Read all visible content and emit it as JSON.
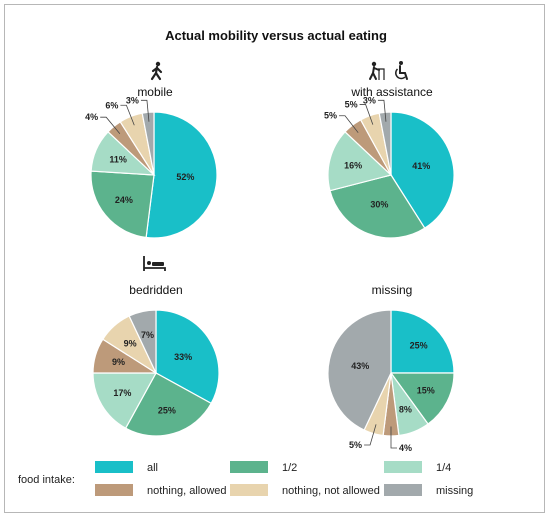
{
  "chart_data": {
    "type": "pie",
    "title": "Actual mobility versus actual eating",
    "legend_title": "food intake:",
    "legend_placement": "bottom",
    "categories": [
      "all",
      "1/2",
      "1/4",
      "nothing, allowed",
      "nothing, not allowed",
      "missing"
    ],
    "colors": {
      "all": "#19bfc8",
      "1/2": "#5cb38d",
      "1/4": "#a6dcc6",
      "nothing, allowed": "#bd9a7a",
      "nothing, not allowed": "#e8d4ae",
      "missing": "#a2a9ac"
    },
    "pies": [
      {
        "name": "mobile",
        "icon": "walking-person-icon",
        "values": [
          52,
          24,
          11,
          4,
          6,
          3
        ],
        "labels": [
          "52%",
          "24%",
          "11%",
          "4%",
          "6%",
          "3%"
        ]
      },
      {
        "name": "with assistance",
        "icon": "walker-and-wheelchair-icon",
        "values": [
          41,
          30,
          16,
          5,
          5,
          3
        ],
        "labels": [
          "41%",
          "30%",
          "16%",
          "5%",
          "5%",
          "3%"
        ]
      },
      {
        "name": "bedridden",
        "icon": "bed-icon",
        "values": [
          33,
          25,
          17,
          9,
          9,
          7
        ],
        "labels": [
          "33%",
          "25%",
          "17%",
          "9%",
          "9%",
          "7%"
        ]
      },
      {
        "name": "missing",
        "icon": "",
        "values": [
          25,
          15,
          8,
          4,
          5,
          43
        ],
        "labels": [
          "25%",
          "15%",
          "8%",
          "4%",
          "5%",
          "43%"
        ]
      }
    ]
  }
}
